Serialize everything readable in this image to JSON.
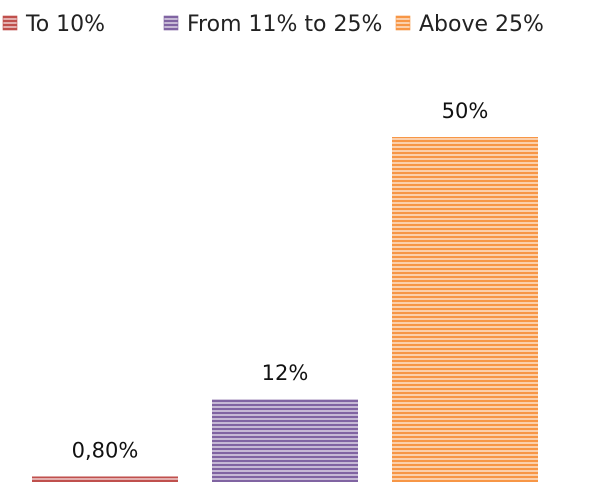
{
  "chart_data": {
    "type": "bar",
    "categories": [
      "To 10%",
      "From 11% to 25%",
      "Above 25%"
    ],
    "values": [
      0.8,
      12,
      50
    ],
    "data_labels": [
      "0,80%",
      "12%",
      "50%"
    ],
    "ylim": [
      0,
      50
    ],
    "grid": false,
    "legend_position": "top",
    "colors": [
      "#c0504d",
      "#8064a2",
      "#f79646"
    ],
    "pattern": "horizontal-stripes"
  }
}
